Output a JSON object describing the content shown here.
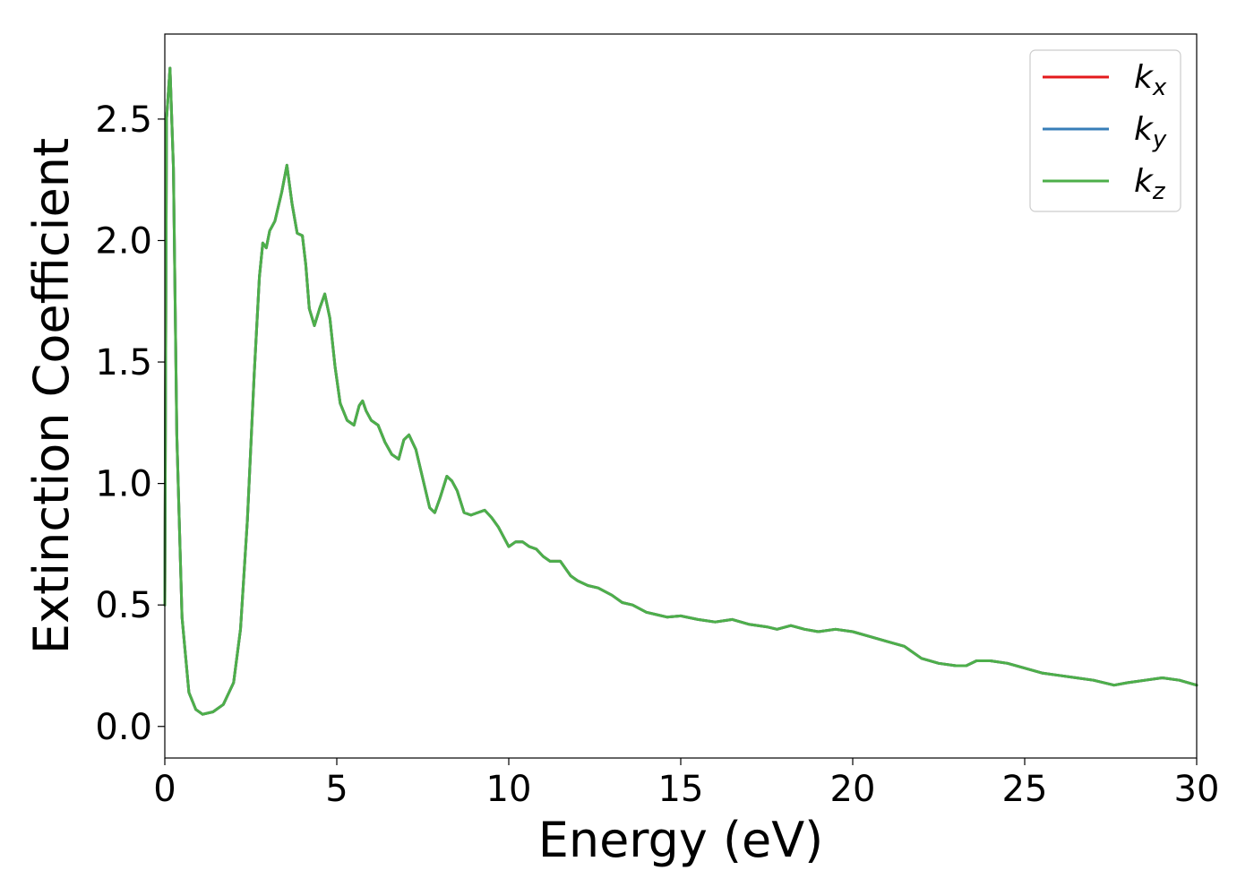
{
  "chart_data": {
    "type": "line",
    "title": "",
    "xlabel": "Energy (eV)",
    "ylabel": "Extinction Coefficient",
    "xlim": [
      0,
      30
    ],
    "ylim": [
      -0.13,
      2.85
    ],
    "xticks": [
      0,
      5,
      10,
      15,
      20,
      25,
      30
    ],
    "xtick_labels": [
      "0",
      "5",
      "10",
      "15",
      "20",
      "25",
      "30"
    ],
    "yticks": [
      0.0,
      0.5,
      1.0,
      1.5,
      2.0,
      2.5
    ],
    "ytick_labels": [
      "0.0",
      "0.5",
      "1.0",
      "1.5",
      "2.0",
      "2.5"
    ],
    "grid": false,
    "legend_position": "top-right",
    "x": [
      0,
      0.05,
      0.15,
      0.25,
      0.35,
      0.5,
      0.7,
      0.9,
      1.1,
      1.4,
      1.7,
      2.0,
      2.2,
      2.4,
      2.6,
      2.75,
      2.85,
      2.95,
      3.05,
      3.2,
      3.4,
      3.55,
      3.7,
      3.85,
      4.0,
      4.1,
      4.2,
      4.35,
      4.5,
      4.65,
      4.8,
      4.95,
      5.1,
      5.3,
      5.5,
      5.65,
      5.75,
      5.85,
      6.0,
      6.2,
      6.4,
      6.6,
      6.8,
      6.95,
      7.1,
      7.3,
      7.5,
      7.7,
      7.85,
      8.0,
      8.2,
      8.35,
      8.5,
      8.7,
      8.9,
      9.1,
      9.3,
      9.5,
      9.7,
      10.0,
      10.2,
      10.4,
      10.6,
      10.8,
      11.0,
      11.2,
      11.5,
      11.8,
      12.0,
      12.3,
      12.6,
      13.0,
      13.3,
      13.6,
      14.0,
      14.3,
      14.6,
      15.0,
      15.5,
      16.0,
      16.5,
      17.0,
      17.5,
      17.8,
      18.2,
      18.6,
      19.0,
      19.5,
      20.0,
      20.5,
      21.0,
      21.5,
      22.0,
      22.5,
      23.0,
      23.3,
      23.6,
      24.0,
      24.5,
      25.0,
      25.5,
      26.0,
      26.5,
      27.0,
      27.3,
      27.6,
      28.0,
      28.5,
      29.0,
      29.5,
      30.0
    ],
    "series": [
      {
        "name": "k_x",
        "color": "#e41a1c",
        "y": [
          0.5,
          2.5,
          2.71,
          2.3,
          1.2,
          0.45,
          0.14,
          0.07,
          0.05,
          0.06,
          0.09,
          0.18,
          0.4,
          0.85,
          1.45,
          1.85,
          1.99,
          1.97,
          2.04,
          2.08,
          2.2,
          2.31,
          2.15,
          2.03,
          2.02,
          1.9,
          1.72,
          1.65,
          1.72,
          1.78,
          1.68,
          1.48,
          1.33,
          1.26,
          1.24,
          1.32,
          1.34,
          1.3,
          1.26,
          1.24,
          1.17,
          1.12,
          1.1,
          1.18,
          1.2,
          1.14,
          1.02,
          0.9,
          0.88,
          0.94,
          1.03,
          1.01,
          0.97,
          0.88,
          0.87,
          0.88,
          0.89,
          0.86,
          0.82,
          0.74,
          0.76,
          0.76,
          0.74,
          0.73,
          0.7,
          0.68,
          0.68,
          0.62,
          0.6,
          0.58,
          0.57,
          0.54,
          0.51,
          0.5,
          0.47,
          0.46,
          0.45,
          0.455,
          0.44,
          0.43,
          0.44,
          0.42,
          0.41,
          0.4,
          0.415,
          0.4,
          0.39,
          0.4,
          0.39,
          0.37,
          0.35,
          0.33,
          0.28,
          0.26,
          0.25,
          0.25,
          0.27,
          0.27,
          0.26,
          0.24,
          0.22,
          0.21,
          0.2,
          0.19,
          0.18,
          0.17,
          0.18,
          0.19,
          0.2,
          0.19,
          0.17
        ]
      },
      {
        "name": "k_y",
        "color": "#377eb8",
        "y": [
          0.5,
          2.5,
          2.71,
          2.3,
          1.2,
          0.45,
          0.14,
          0.07,
          0.05,
          0.06,
          0.09,
          0.18,
          0.4,
          0.85,
          1.45,
          1.85,
          1.99,
          1.97,
          2.04,
          2.08,
          2.2,
          2.31,
          2.15,
          2.03,
          2.02,
          1.9,
          1.72,
          1.65,
          1.72,
          1.78,
          1.68,
          1.48,
          1.33,
          1.26,
          1.24,
          1.32,
          1.34,
          1.3,
          1.26,
          1.24,
          1.17,
          1.12,
          1.1,
          1.18,
          1.2,
          1.14,
          1.02,
          0.9,
          0.88,
          0.94,
          1.03,
          1.01,
          0.97,
          0.88,
          0.87,
          0.88,
          0.89,
          0.86,
          0.82,
          0.74,
          0.76,
          0.76,
          0.74,
          0.73,
          0.7,
          0.68,
          0.68,
          0.62,
          0.6,
          0.58,
          0.57,
          0.54,
          0.51,
          0.5,
          0.47,
          0.46,
          0.45,
          0.455,
          0.44,
          0.43,
          0.44,
          0.42,
          0.41,
          0.4,
          0.415,
          0.4,
          0.39,
          0.4,
          0.39,
          0.37,
          0.35,
          0.33,
          0.28,
          0.26,
          0.25,
          0.25,
          0.27,
          0.27,
          0.26,
          0.24,
          0.22,
          0.21,
          0.2,
          0.19,
          0.18,
          0.17,
          0.18,
          0.19,
          0.2,
          0.19,
          0.17
        ]
      },
      {
        "name": "k_z",
        "color": "#4daf4a",
        "y": [
          0.5,
          2.5,
          2.71,
          2.3,
          1.2,
          0.45,
          0.14,
          0.07,
          0.05,
          0.06,
          0.09,
          0.18,
          0.4,
          0.85,
          1.45,
          1.85,
          1.99,
          1.97,
          2.04,
          2.08,
          2.2,
          2.31,
          2.15,
          2.03,
          2.02,
          1.9,
          1.72,
          1.65,
          1.72,
          1.78,
          1.68,
          1.48,
          1.33,
          1.26,
          1.24,
          1.32,
          1.34,
          1.3,
          1.26,
          1.24,
          1.17,
          1.12,
          1.1,
          1.18,
          1.2,
          1.14,
          1.02,
          0.9,
          0.88,
          0.94,
          1.03,
          1.01,
          0.97,
          0.88,
          0.87,
          0.88,
          0.89,
          0.86,
          0.82,
          0.74,
          0.76,
          0.76,
          0.74,
          0.73,
          0.7,
          0.68,
          0.68,
          0.62,
          0.6,
          0.58,
          0.57,
          0.54,
          0.51,
          0.5,
          0.47,
          0.46,
          0.45,
          0.455,
          0.44,
          0.43,
          0.44,
          0.42,
          0.41,
          0.4,
          0.415,
          0.4,
          0.39,
          0.4,
          0.39,
          0.37,
          0.35,
          0.33,
          0.28,
          0.26,
          0.25,
          0.25,
          0.27,
          0.27,
          0.26,
          0.24,
          0.22,
          0.21,
          0.2,
          0.19,
          0.18,
          0.17,
          0.18,
          0.19,
          0.2,
          0.19,
          0.17
        ]
      }
    ],
    "legend": [
      {
        "base": "k",
        "sub": "x",
        "color": "#e41a1c"
      },
      {
        "base": "k",
        "sub": "y",
        "color": "#377eb8"
      },
      {
        "base": "k",
        "sub": "z",
        "color": "#4daf4a"
      }
    ]
  }
}
